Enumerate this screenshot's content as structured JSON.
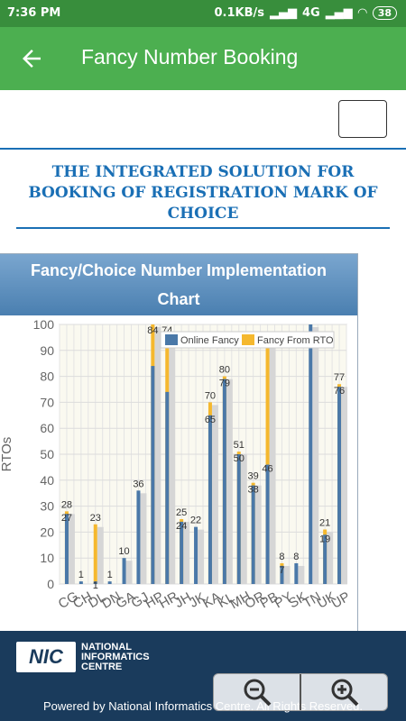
{
  "status_bar": {
    "time": "7:36 PM",
    "speed": "0.1KB/s",
    "network": "4G",
    "battery": "38"
  },
  "app_bar": {
    "title": "Fancy Number Booking"
  },
  "page": {
    "heading": "THE INTEGRATED SOLUTION FOR BOOKING OF REGISTRATION MARK OF CHOICE"
  },
  "chart_card": {
    "title_line1": "Fancy/Choice Number Implementation",
    "title_line2": "Chart"
  },
  "footer": {
    "org_line1": "NATIONAL",
    "org_line2": "INFORMATICS",
    "org_line3": "CENTRE",
    "logo_text": "NIC",
    "powered_by": "Powered by National Informatics Centre. All Rights Reserved."
  },
  "zoom": {
    "out_icon": "zoom-out-icon",
    "in_icon": "zoom-in-icon"
  },
  "colors": {
    "status_bar": "#388e3c",
    "app_bar": "#4caf50",
    "online_fancy": "#4a78a8",
    "fancy_from_rto": "#f5b82e",
    "heading": "#1a6fb5"
  },
  "chart_data": {
    "type": "bar",
    "title": "",
    "xlabel": "",
    "ylabel": "RTOs",
    "ylim": [
      0,
      100
    ],
    "yticks": [
      0,
      10,
      20,
      30,
      40,
      50,
      60,
      70,
      80,
      90,
      100
    ],
    "legend": {
      "placement": "top-right",
      "entries": [
        "Online Fancy",
        "Fancy From RTO"
      ]
    },
    "grid": true,
    "categories": [
      "CG",
      "CH",
      "DL",
      "DN",
      "GA",
      "GJ",
      "HP",
      "HR",
      "JH",
      "JK",
      "KA",
      "KL",
      "MH",
      "OR",
      "PB",
      "PY",
      "SK",
      "TN",
      "UK",
      "UP"
    ],
    "series": [
      {
        "name": "Online Fancy",
        "values": [
          27,
          1,
          1,
          1,
          10,
          36,
          84,
          74,
          24,
          22,
          65,
          79,
          50,
          38,
          46,
          7,
          8,
          100,
          19,
          76
        ]
      },
      {
        "name": "Fancy From RTO",
        "values": [
          28,
          0,
          23,
          0,
          0,
          0,
          100,
          97,
          25,
          0,
          70,
          80,
          51,
          39,
          92,
          8,
          0,
          0,
          21,
          77
        ]
      }
    ],
    "data_labels": [
      {
        "category": "CG",
        "top": "28",
        "bottom": "27"
      },
      {
        "category": "CH",
        "top": "1",
        "bottom": ""
      },
      {
        "category": "DL",
        "top": "23",
        "bottom": "1"
      },
      {
        "category": "DN",
        "top": "1",
        "bottom": ""
      },
      {
        "category": "GA",
        "top": "10",
        "bottom": ""
      },
      {
        "category": "GJ",
        "top": "36",
        "bottom": ""
      },
      {
        "category": "HP",
        "top": "84",
        "bottom": ""
      },
      {
        "category": "HR",
        "top": "74",
        "bottom": ""
      },
      {
        "category": "JH",
        "top": "25",
        "bottom": "24"
      },
      {
        "category": "JK",
        "top": "22",
        "bottom": ""
      },
      {
        "category": "KA",
        "top": "70",
        "bottom": "65"
      },
      {
        "category": "KL",
        "top": "80",
        "bottom": "79"
      },
      {
        "category": "MH",
        "top": "51",
        "bottom": "50"
      },
      {
        "category": "OR",
        "top": "39",
        "bottom": "38"
      },
      {
        "category": "PB",
        "top": "92",
        "bottom": "46"
      },
      {
        "category": "PY",
        "top": "8",
        "bottom": "7"
      },
      {
        "category": "SK",
        "top": "8",
        "bottom": ""
      },
      {
        "category": "TN",
        "top": "",
        "bottom": ""
      },
      {
        "category": "UK",
        "top": "21",
        "bottom": "19"
      },
      {
        "category": "UP",
        "top": "77",
        "bottom": "76"
      }
    ]
  }
}
